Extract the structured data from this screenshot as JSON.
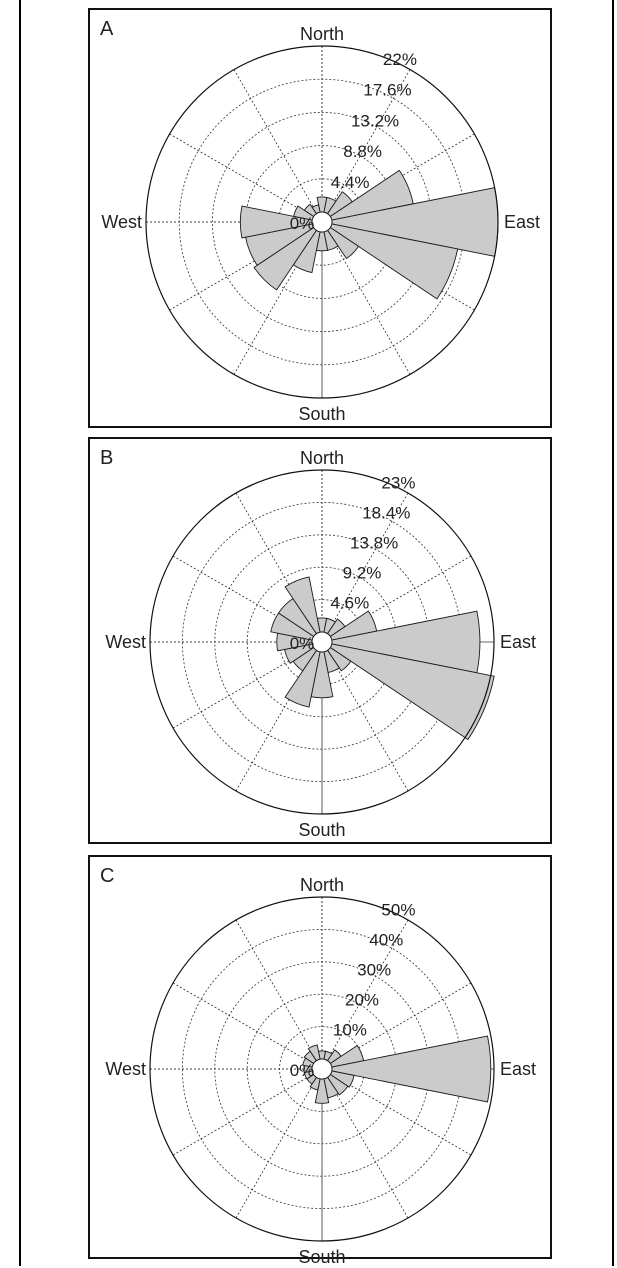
{
  "chart_data": [
    {
      "type": "rose",
      "panel_label": "A",
      "directions": {
        "north": "North",
        "south": "South",
        "east": "East",
        "west": "West"
      },
      "ring_labels": [
        "0%",
        "4.4%",
        "8.8%",
        "13.2%",
        "17.6%",
        "22%"
      ],
      "r_max": 22,
      "sector_count": 16,
      "sectors": [
        {
          "direction": "N",
          "value": 2.0
        },
        {
          "direction": "NNE",
          "value": 2.0
        },
        {
          "direction": "NE",
          "value": 3.5
        },
        {
          "direction": "ENE",
          "value": 11.0
        },
        {
          "direction": "E",
          "value": 22.0
        },
        {
          "direction": "ESE",
          "value": 17.0
        },
        {
          "direction": "SE",
          "value": 4.5
        },
        {
          "direction": "SSE",
          "value": 2.5
        },
        {
          "direction": "S",
          "value": 2.5
        },
        {
          "direction": "SSW",
          "value": 5.5
        },
        {
          "direction": "SW",
          "value": 9.5
        },
        {
          "direction": "WSW",
          "value": 9.0
        },
        {
          "direction": "W",
          "value": 9.5
        },
        {
          "direction": "WNW",
          "value": 2.5
        },
        {
          "direction": "NW",
          "value": 1.5
        },
        {
          "direction": "NNW",
          "value": 1.0
        }
      ]
    },
    {
      "type": "rose",
      "panel_label": "B",
      "directions": {
        "north": "North",
        "south": "South",
        "east": "East",
        "west": "West"
      },
      "ring_labels": [
        "0%",
        "4.6%",
        "9.2%",
        "13.8%",
        "18.4%",
        "23%"
      ],
      "r_max": 23,
      "sector_count": 16,
      "sectors": [
        {
          "direction": "N",
          "value": 2.0
        },
        {
          "direction": "NNE",
          "value": 2.0
        },
        {
          "direction": "NE",
          "value": 2.5
        },
        {
          "direction": "ENE",
          "value": 6.5
        },
        {
          "direction": "E",
          "value": 21.0
        },
        {
          "direction": "ESE",
          "value": 23.5
        },
        {
          "direction": "SE",
          "value": 3.5
        },
        {
          "direction": "SSE",
          "value": 3.0
        },
        {
          "direction": "S",
          "value": 6.5
        },
        {
          "direction": "SSW",
          "value": 8.0
        },
        {
          "direction": "SW",
          "value": 3.5
        },
        {
          "direction": "WSW",
          "value": 4.0
        },
        {
          "direction": "W",
          "value": 5.0
        },
        {
          "direction": "WNW",
          "value": 6.0
        },
        {
          "direction": "NW",
          "value": 6.0
        },
        {
          "direction": "NNW",
          "value": 8.0
        }
      ]
    },
    {
      "type": "rose",
      "panel_label": "C",
      "directions": {
        "north": "North",
        "south": "South",
        "east": "East",
        "west": "West"
      },
      "ring_labels": [
        "0%",
        "10%",
        "20%",
        "30%",
        "40%",
        "50%"
      ],
      "r_max": 50,
      "sector_count": 16,
      "sectors": [
        {
          "direction": "N",
          "value": 2.5
        },
        {
          "direction": "NNE",
          "value": 2.5
        },
        {
          "direction": "NE",
          "value": 4.0
        },
        {
          "direction": "ENE",
          "value": 10.0
        },
        {
          "direction": "E",
          "value": 49.0
        },
        {
          "direction": "ESE",
          "value": 7.0
        },
        {
          "direction": "SE",
          "value": 6.5
        },
        {
          "direction": "SSE",
          "value": 6.0
        },
        {
          "direction": "S",
          "value": 7.5
        },
        {
          "direction": "SSW",
          "value": 3.5
        },
        {
          "direction": "SW",
          "value": 2.5
        },
        {
          "direction": "WSW",
          "value": 2.5
        },
        {
          "direction": "W",
          "value": 2.5
        },
        {
          "direction": "WNW",
          "value": 3.0
        },
        {
          "direction": "NW",
          "value": 3.5
        },
        {
          "direction": "NNW",
          "value": 4.5
        }
      ]
    }
  ],
  "colors": {
    "sector_fill": "#cbcbcb",
    "sector_stroke": "#1a1a1a",
    "grid": "#333333",
    "text": "#222222"
  }
}
